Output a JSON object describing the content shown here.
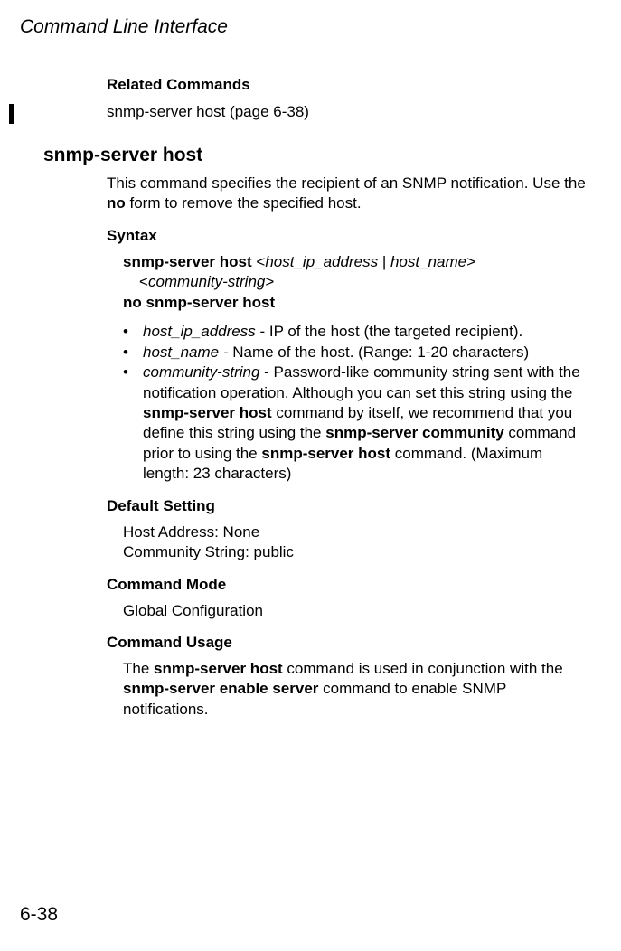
{
  "header": {
    "running_title": "Command Line Interface"
  },
  "related": {
    "heading": "Related Commands",
    "line_cmd": "snmp-server host",
    "line_ref": " (page 6-38)"
  },
  "cmd": {
    "title": "snmp-server host",
    "desc_pre": "This command specifies the recipient of an SNMP notification. Use the ",
    "desc_bold": "no",
    "desc_post": " form to remove the specified host."
  },
  "syntax": {
    "heading": "Syntax",
    "line1_bold": "snmp-server host ",
    "line1_lt": "<",
    "line1_arg1": "host_ip_address",
    "line1_pipe": " | ",
    "line1_arg2": "host_name",
    "line1_gt": ">",
    "line2_lt": "<",
    "line2_arg": "community-string",
    "line2_gt": ">",
    "line3_bold": "no snmp-server host"
  },
  "bullets": {
    "b1_arg": "host_ip_address",
    "b1_rest": " - IP of the host (the targeted recipient).",
    "b2_arg": "host_name - ",
    "b2_rest": "Name of the host. (Range: 1-20 characters)",
    "b3_arg": "community-string",
    "b3_pre": " - Password-like community string sent with the notification operation. Although you can set this string using the ",
    "b3_cmd1": "snmp-server host",
    "b3_mid1": " command by itself, we recommend that you define this string using the ",
    "b3_cmd2": "snmp-server community",
    "b3_mid2": " command prior to using the ",
    "b3_cmd3": "snmp-server host",
    "b3_post": " command. (Maximum length: 23 characters)"
  },
  "default": {
    "heading": "Default Setting",
    "line1": "Host Address: None",
    "line2": "Community String: public"
  },
  "mode": {
    "heading": "Command Mode",
    "value": "Global Configuration"
  },
  "usage": {
    "heading": "Command Usage",
    "pre": "The ",
    "cmd1": "snmp-server host",
    "mid1": " command is used in conjunction with the ",
    "cmd2": "snmp-server enable server",
    "post": " command to enable SNMP notifications."
  },
  "footer": {
    "page_number": "6-38"
  }
}
